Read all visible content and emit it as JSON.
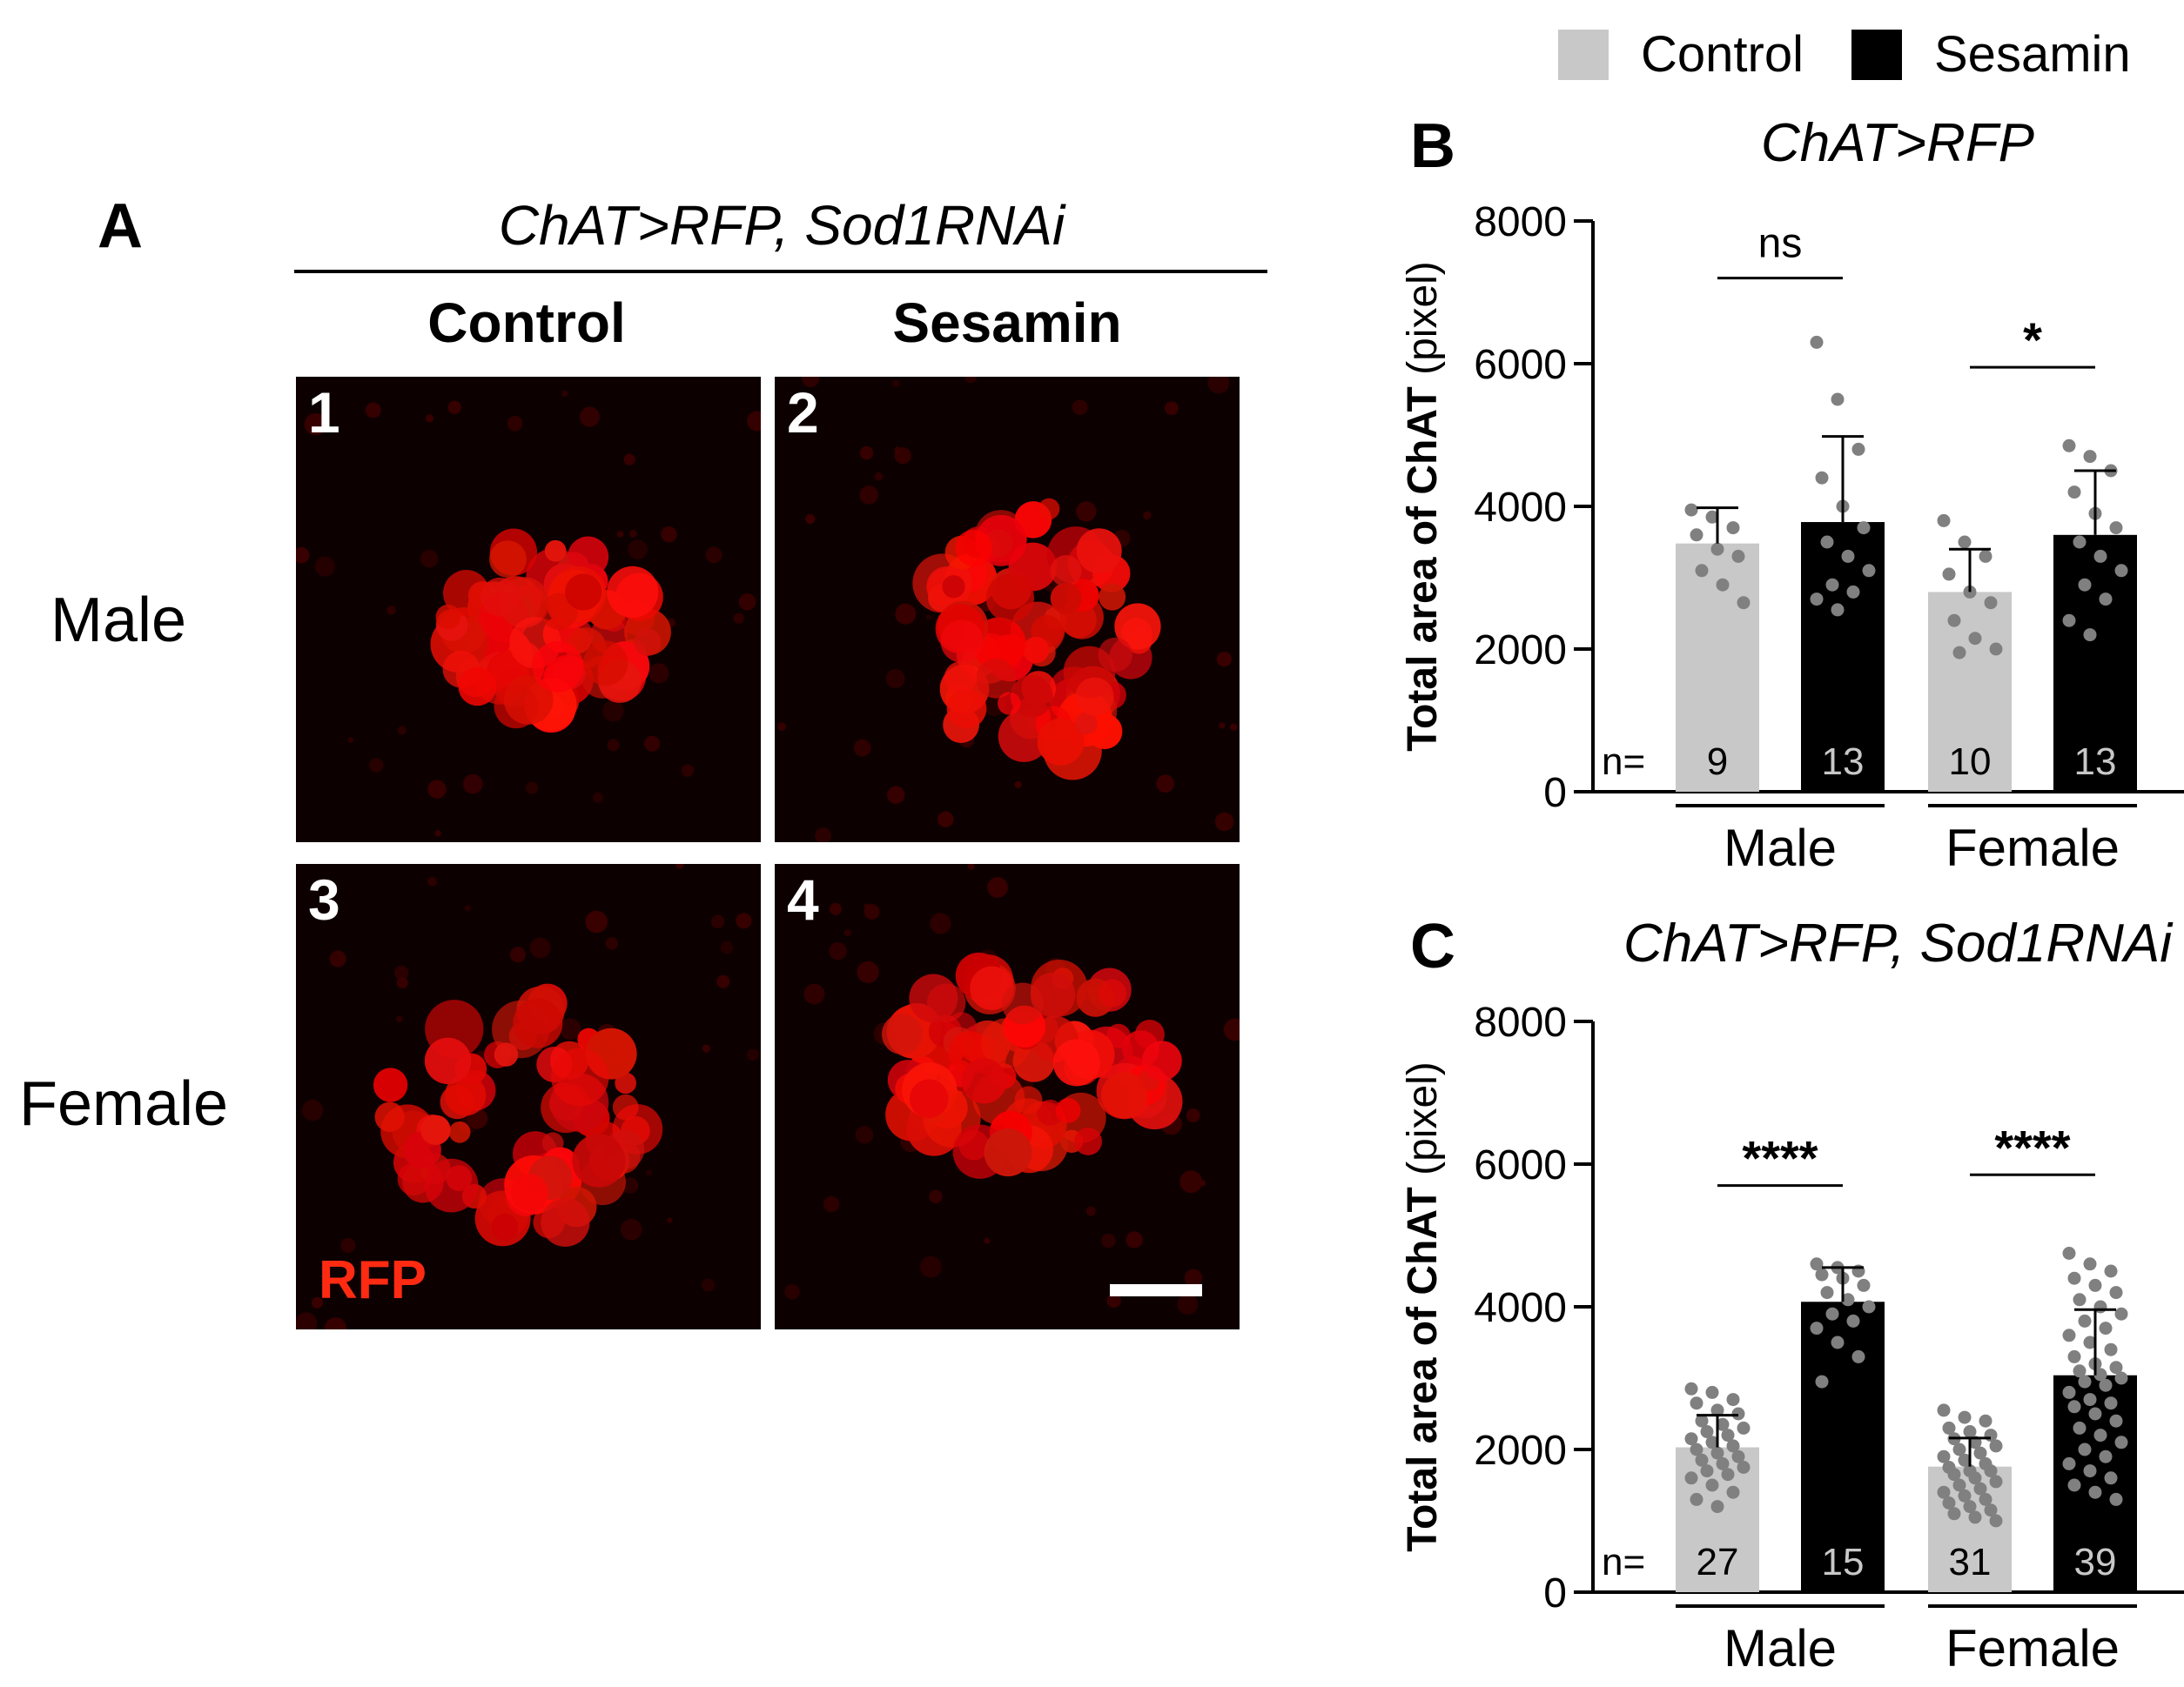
{
  "legend": {
    "items": [
      {
        "label": "Control",
        "color": "#c8c8c8"
      },
      {
        "label": "Sesamin",
        "color": "#000000"
      }
    ]
  },
  "panel_a": {
    "letter": "A",
    "title": "ChAT>RFP, Sod1RNAi",
    "columns": [
      "Control",
      "Sesamin"
    ],
    "rows": [
      "Male",
      "Female"
    ],
    "image_numbers": [
      "1",
      "2",
      "3",
      "4"
    ],
    "channel_label": "RFP",
    "channel_color": "#ff2a12"
  },
  "chart_data": [
    {
      "panel": "B",
      "type": "bar",
      "title": "ChAT>RFP",
      "ylabel": "Total area of ChAT (pixel)",
      "ylim": [
        0,
        8000
      ],
      "yticks": [
        0,
        2000,
        4000,
        6000,
        8000
      ],
      "categories": [
        "Male",
        "Female"
      ],
      "n_prefix": "n=",
      "series": [
        {
          "name": "Control",
          "color": "#c8c8c8",
          "values": [
            3480,
            2800
          ],
          "sd": [
            500,
            600
          ],
          "n": [
            "9",
            "10"
          ],
          "points": [
            [
              3950,
              3850,
              3700,
              3600,
              3400,
              3300,
              3100,
              2900,
              2650
            ],
            [
              3800,
              3500,
              3300,
              3050,
              2800,
              2650,
              2400,
              2150,
              2000,
              1950
            ]
          ]
        },
        {
          "name": "Sesamin",
          "color": "#000000",
          "values": [
            3780,
            3600
          ],
          "sd": [
            1200,
            900
          ],
          "n": [
            "13",
            "13"
          ],
          "points": [
            [
              6300,
              5500,
              4800,
              4400,
              4000,
              3700,
              3500,
              3300,
              3100,
              2900,
              2800,
              2700,
              2550
            ],
            [
              4850,
              4700,
              4500,
              4200,
              3900,
              3700,
              3500,
              3300,
              3100,
              2900,
              2700,
              2400,
              2200
            ]
          ]
        }
      ],
      "significance": [
        "ns",
        "*"
      ]
    },
    {
      "panel": "C",
      "type": "bar",
      "title": "ChAT>RFP, Sod1RNAi",
      "ylabel": "Total area of ChAT (pixel)",
      "ylim": [
        0,
        8000
      ],
      "yticks": [
        0,
        2000,
        4000,
        6000,
        8000
      ],
      "categories": [
        "Male",
        "Female"
      ],
      "n_prefix": "n=",
      "series": [
        {
          "name": "Control",
          "color": "#c8c8c8",
          "values": [
            2030,
            1760
          ],
          "sd": [
            450,
            400
          ],
          "n": [
            "27",
            "31"
          ],
          "points": [
            [
              2850,
              2800,
              2700,
              2650,
              2550,
              2500,
              2400,
              2350,
              2300,
              2250,
              2200,
              2150,
              2100,
              2050,
              2000,
              1950,
              1900,
              1850,
              1800,
              1750,
              1700,
              1650,
              1600,
              1500,
              1400,
              1300,
              1200
            ],
            [
              2550,
              2450,
              2400,
              2300,
              2250,
              2200,
              2150,
              2100,
              2050,
              2000,
              1950,
              1900,
              1850,
              1800,
              1750,
              1700,
              1700,
              1650,
              1600,
              1550,
              1500,
              1450,
              1400,
              1350,
              1300,
              1250,
              1200,
              1150,
              1100,
              1050,
              1000
            ]
          ]
        },
        {
          "name": "Sesamin",
          "color": "#000000",
          "values": [
            4070,
            3040
          ],
          "sd": [
            480,
            920
          ],
          "n": [
            "15",
            "39"
          ],
          "points": [
            [
              4600,
              4550,
              4500,
              4450,
              4400,
              4300,
              4200,
              4100,
              4000,
              3900,
              3800,
              3700,
              3500,
              3300,
              2950
            ],
            [
              4750,
              4600,
              4500,
              4400,
              4300,
              4200,
              4100,
              4000,
              3900,
              3800,
              3700,
              3600,
              3500,
              3400,
              3300,
              3200,
              3150,
              3100,
              3050,
              3000,
              2950,
              2900,
              2800,
              2700,
              2650,
              2600,
              2500,
              2400,
              2300,
              2200,
              2100,
              2000,
              1900,
              1800,
              1700,
              1600,
              1500,
              1400,
              1300
            ]
          ]
        }
      ],
      "significance": [
        "****",
        "****"
      ]
    }
  ]
}
